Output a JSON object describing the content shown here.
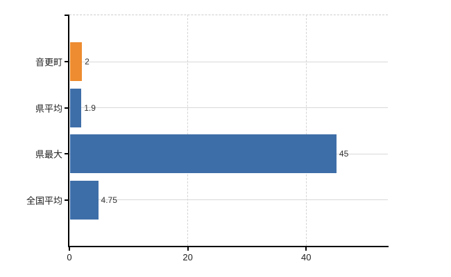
{
  "chart_data": {
    "type": "bar",
    "orientation": "horizontal",
    "title": "",
    "xlabel": "",
    "ylabel": "",
    "categories": [
      "音更町",
      "県平均",
      "県最大",
      "全国平均"
    ],
    "values": [
      2,
      1.9,
      45,
      4.75
    ],
    "value_labels": [
      "2",
      "1.9",
      "45",
      "4.75"
    ],
    "bar_colors": [
      "#ed8c30",
      "#3e6ea8",
      "#3e6ea8",
      "#3e6ea8"
    ],
    "xlim": [
      0,
      53.8
    ],
    "xticks": [
      0,
      20,
      40
    ],
    "grid": true,
    "legend": false
  },
  "colors": {
    "highlight_bar": "#ed8c30",
    "series_bar": "#3e6ea8",
    "gridline": "#d8d8d8",
    "axis": "#000000",
    "text": "#222222",
    "background": "#ffffff"
  }
}
